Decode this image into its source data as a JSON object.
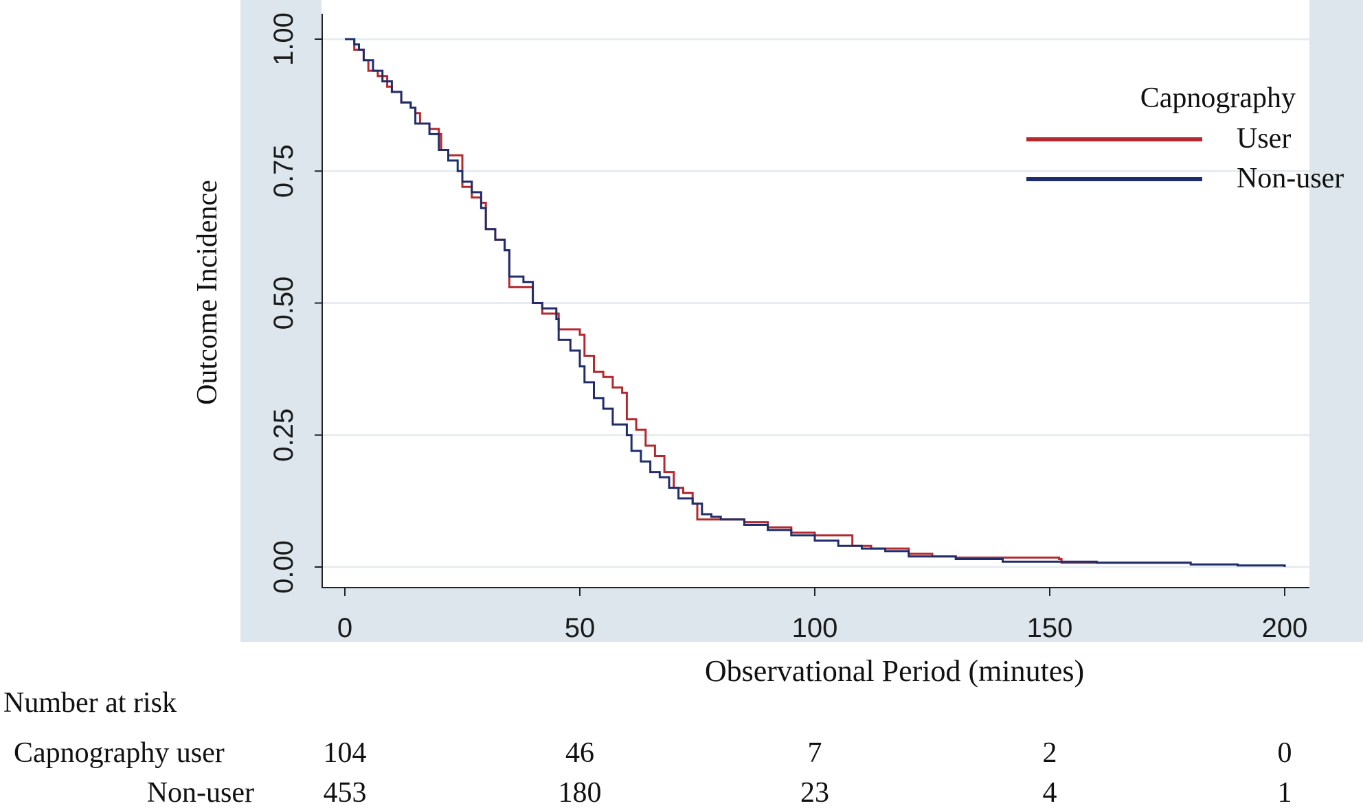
{
  "chart_data": {
    "type": "line",
    "title": "",
    "xlabel": "Observational Period (minutes)",
    "ylabel": "Outcome Incidence",
    "xlim": [
      0,
      200
    ],
    "ylim": [
      0,
      1
    ],
    "x_ticks": [
      "0",
      "50",
      "100",
      "150",
      "200"
    ],
    "y_ticks": [
      "0.00",
      "0.25",
      "0.50",
      "0.75",
      "1.00"
    ],
    "grid": "horizontal",
    "legend": {
      "title": "Capnography",
      "position": "top-right"
    },
    "series": [
      {
        "name": "User",
        "color": "#b5282e",
        "points": [
          [
            0,
            1.0
          ],
          [
            2,
            0.98
          ],
          [
            4,
            0.96
          ],
          [
            5,
            0.94
          ],
          [
            7,
            0.93
          ],
          [
            9,
            0.91
          ],
          [
            10,
            0.9
          ],
          [
            12,
            0.88
          ],
          [
            14,
            0.87
          ],
          [
            15,
            0.86
          ],
          [
            16,
            0.84
          ],
          [
            18,
            0.83
          ],
          [
            20,
            0.82
          ],
          [
            20.5,
            0.79
          ],
          [
            22,
            0.78
          ],
          [
            24,
            0.78
          ],
          [
            25,
            0.72
          ],
          [
            27,
            0.7
          ],
          [
            29,
            0.69
          ],
          [
            30,
            0.64
          ],
          [
            32,
            0.62
          ],
          [
            34,
            0.6
          ],
          [
            35,
            0.53
          ],
          [
            40,
            0.5
          ],
          [
            42,
            0.48
          ],
          [
            45,
            0.48
          ],
          [
            45.5,
            0.45
          ],
          [
            48,
            0.45
          ],
          [
            50,
            0.44
          ],
          [
            51,
            0.4
          ],
          [
            53,
            0.37
          ],
          [
            55,
            0.36
          ],
          [
            57,
            0.34
          ],
          [
            59,
            0.33
          ],
          [
            60,
            0.28
          ],
          [
            62,
            0.26
          ],
          [
            64,
            0.23
          ],
          [
            66,
            0.21
          ],
          [
            68,
            0.18
          ],
          [
            70,
            0.15
          ],
          [
            72,
            0.14
          ],
          [
            74,
            0.12
          ],
          [
            75,
            0.09
          ],
          [
            82,
            0.09
          ],
          [
            85,
            0.085
          ],
          [
            90,
            0.075
          ],
          [
            95,
            0.065
          ],
          [
            100,
            0.06
          ],
          [
            108,
            0.04
          ],
          [
            112,
            0.035
          ],
          [
            120,
            0.025
          ],
          [
            125,
            0.02
          ],
          [
            130,
            0.018
          ],
          [
            152,
            0.015
          ],
          [
            152.5,
            0.008
          ],
          [
            180,
            0.008
          ]
        ]
      },
      {
        "name": "Non-user",
        "color": "#1f2d6b",
        "points": [
          [
            0,
            1.0
          ],
          [
            2,
            0.99
          ],
          [
            3,
            0.98
          ],
          [
            4,
            0.96
          ],
          [
            6,
            0.94
          ],
          [
            8,
            0.92
          ],
          [
            10,
            0.9
          ],
          [
            12,
            0.88
          ],
          [
            14,
            0.87
          ],
          [
            15,
            0.84
          ],
          [
            18,
            0.82
          ],
          [
            20,
            0.79
          ],
          [
            22,
            0.77
          ],
          [
            24,
            0.75
          ],
          [
            25,
            0.73
          ],
          [
            27,
            0.71
          ],
          [
            29,
            0.68
          ],
          [
            30,
            0.64
          ],
          [
            32,
            0.62
          ],
          [
            34,
            0.6
          ],
          [
            35,
            0.55
          ],
          [
            38,
            0.54
          ],
          [
            40,
            0.5
          ],
          [
            42,
            0.49
          ],
          [
            45,
            0.47
          ],
          [
            45.5,
            0.43
          ],
          [
            48,
            0.41
          ],
          [
            50,
            0.38
          ],
          [
            51,
            0.35
          ],
          [
            53,
            0.32
          ],
          [
            55,
            0.3
          ],
          [
            57,
            0.27
          ],
          [
            60,
            0.25
          ],
          [
            61,
            0.22
          ],
          [
            63,
            0.2
          ],
          [
            65,
            0.18
          ],
          [
            67,
            0.17
          ],
          [
            69,
            0.15
          ],
          [
            71,
            0.13
          ],
          [
            74,
            0.12
          ],
          [
            76,
            0.1
          ],
          [
            78,
            0.095
          ],
          [
            80,
            0.09
          ],
          [
            85,
            0.08
          ],
          [
            90,
            0.07
          ],
          [
            95,
            0.06
          ],
          [
            100,
            0.05
          ],
          [
            105,
            0.04
          ],
          [
            110,
            0.035
          ],
          [
            115,
            0.03
          ],
          [
            120,
            0.02
          ],
          [
            130,
            0.015
          ],
          [
            140,
            0.01
          ],
          [
            160,
            0.008
          ],
          [
            180,
            0.005
          ],
          [
            190,
            0.003
          ],
          [
            200,
            0.0
          ]
        ]
      }
    ],
    "risk_table": {
      "title": "Number at risk",
      "timepoints": [
        0,
        50,
        100,
        150,
        200
      ],
      "rows": [
        {
          "label": "Capnography user",
          "values": [
            "104",
            "46",
            "7",
            "2",
            "0"
          ]
        },
        {
          "label": "Non-user",
          "values": [
            "453",
            "180",
            "23",
            "4",
            "1"
          ]
        }
      ]
    }
  }
}
